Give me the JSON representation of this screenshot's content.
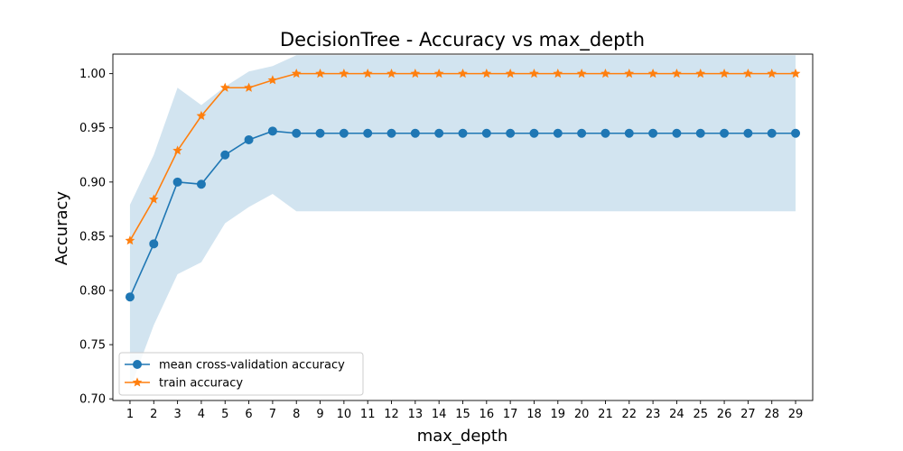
{
  "chart_data": {
    "type": "line",
    "title": "DecisionTree - Accuracy vs max_depth",
    "xlabel": "max_depth",
    "ylabel": "Accuracy",
    "x": [
      1,
      2,
      3,
      4,
      5,
      6,
      7,
      8,
      9,
      10,
      11,
      12,
      13,
      14,
      15,
      16,
      17,
      18,
      19,
      20,
      21,
      22,
      23,
      24,
      25,
      26,
      27,
      28,
      29
    ],
    "xlim": [
      0.28,
      29.72
    ],
    "ylim": [
      0.6985,
      1.018
    ],
    "yticks": [
      0.7,
      0.75,
      0.8,
      0.85,
      0.9,
      0.95,
      1.0
    ],
    "ytick_labels": [
      "0.70",
      "0.75",
      "0.80",
      "0.85",
      "0.90",
      "0.95",
      "1.00"
    ],
    "legend_position": "lower-left",
    "series": [
      {
        "name": "mean cross-validation accuracy",
        "color": "#1f77b4",
        "marker": "circle",
        "values": [
          0.794,
          0.843,
          0.9,
          0.898,
          0.925,
          0.939,
          0.947,
          0.945,
          0.945,
          0.945,
          0.945,
          0.945,
          0.945,
          0.945,
          0.945,
          0.945,
          0.945,
          0.945,
          0.945,
          0.945,
          0.945,
          0.945,
          0.945,
          0.945,
          0.945,
          0.945,
          0.945,
          0.945,
          0.945
        ]
      },
      {
        "name": "train accuracy",
        "color": "#ff7f0e",
        "marker": "star",
        "values": [
          0.846,
          0.884,
          0.929,
          0.961,
          0.987,
          0.987,
          0.994,
          1.0,
          1.0,
          1.0,
          1.0,
          1.0,
          1.0,
          1.0,
          1.0,
          1.0,
          1.0,
          1.0,
          1.0,
          1.0,
          1.0,
          1.0,
          1.0,
          1.0,
          1.0,
          1.0,
          1.0,
          1.0,
          1.0
        ]
      }
    ],
    "band": {
      "color": "#1f77b4",
      "opacity": 0.2,
      "lower": [
        0.709,
        0.768,
        0.815,
        0.826,
        0.862,
        0.877,
        0.889,
        0.873,
        0.873,
        0.873,
        0.873,
        0.873,
        0.873,
        0.873,
        0.873,
        0.873,
        0.873,
        0.873,
        0.873,
        0.873,
        0.873,
        0.873,
        0.873,
        0.873,
        0.873,
        0.873,
        0.873,
        0.873,
        0.873
      ],
      "upper": [
        0.879,
        0.925,
        0.987,
        0.971,
        0.988,
        1.002,
        1.007,
        1.017,
        1.017,
        1.017,
        1.017,
        1.017,
        1.017,
        1.017,
        1.017,
        1.017,
        1.017,
        1.017,
        1.017,
        1.017,
        1.017,
        1.017,
        1.017,
        1.017,
        1.017,
        1.017,
        1.017,
        1.017,
        1.017
      ]
    }
  }
}
